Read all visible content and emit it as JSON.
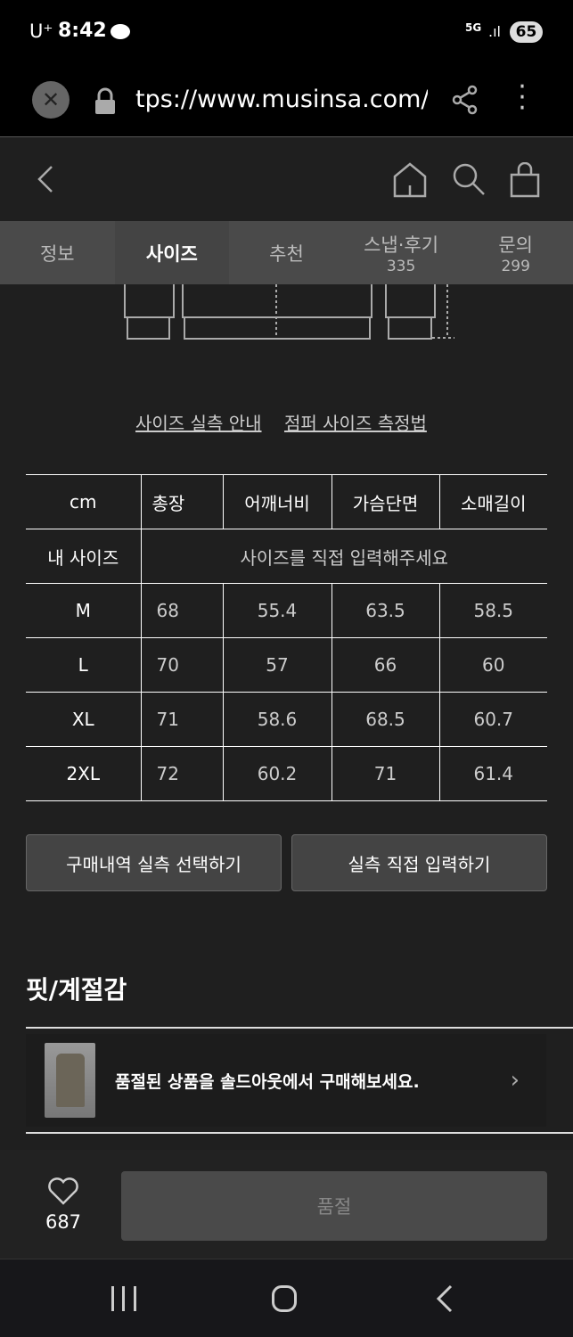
{
  "status": {
    "carrier": "U⁺",
    "time": "8:42",
    "network": "5G",
    "battery": "65"
  },
  "browser": {
    "url": "tps://www.musinsa.com/p"
  },
  "tabs": [
    {
      "label": "정보"
    },
    {
      "label": "사이즈"
    },
    {
      "label": "추천"
    },
    {
      "label": "스냅·후기",
      "count": "335"
    },
    {
      "label": "문의",
      "count": "299"
    }
  ],
  "links": {
    "guide": "사이즈 실측 안내",
    "method": "점퍼 사이즈 측정법"
  },
  "size_table": {
    "headers": [
      "cm",
      "총장",
      "어깨너비",
      "가슴단면",
      "소매길이"
    ],
    "my_size_label": "내 사이즈",
    "my_size_prompt": "사이즈를 직접 입력해주세요",
    "rows": [
      [
        "M",
        "68",
        "55.4",
        "63.5",
        "58.5"
      ],
      [
        "L",
        "70",
        "57",
        "66",
        "60"
      ],
      [
        "XL",
        "71",
        "58.6",
        "68.5",
        "60.7"
      ],
      [
        "2XL",
        "72",
        "60.2",
        "71",
        "61.4"
      ]
    ]
  },
  "buttons": {
    "history": "구매내역 실측 선택하기",
    "direct": "실측 직접 입력하기"
  },
  "fit_title": "핏/계절감",
  "banner": "품절된 상품을 솔드아웃에서 구매해보세요.",
  "likes": "687",
  "soldout": "품절"
}
